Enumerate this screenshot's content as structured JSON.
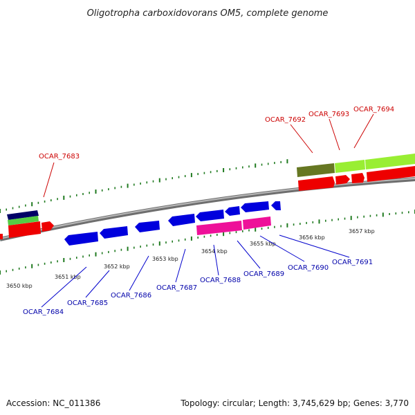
{
  "title": "Oligotropha carboxidovorans OM5, complete genome",
  "footer": {
    "accession": "Accession: NC_011386",
    "topology": "Topology: circular; Length: 3,745,629 bp; Genes: 3,770"
  },
  "colors": {
    "background": "#ffffff",
    "backbone": "#8c8c8c",
    "tick": "#1f7a1f",
    "forward_label": "#cc0000",
    "reverse_label": "#0000aa",
    "red_gene": "#ee0000",
    "blue_gene": "#0000dd",
    "green_gene": "#55cc44",
    "navy_gene": "#000066",
    "olive_gene": "#667722",
    "lime_gene": "#99ee33",
    "pink_gene": "#ee1199"
  },
  "kbp_labels": [
    "3650 kbp",
    "3651 kbp",
    "3652 kbp",
    "3653 kbp",
    "3654 kbp",
    "3655 kbp",
    "3656 kbp",
    "3657 kbp"
  ],
  "forward_genes": [
    "OCAR_7683",
    "OCAR_7692",
    "OCAR_7693",
    "OCAR_7694"
  ],
  "reverse_genes": [
    "OCAR_7684",
    "OCAR_7685",
    "OCAR_7686",
    "OCAR_7687",
    "OCAR_7688",
    "OCAR_7689",
    "OCAR_7690",
    "OCAR_7691"
  ]
}
